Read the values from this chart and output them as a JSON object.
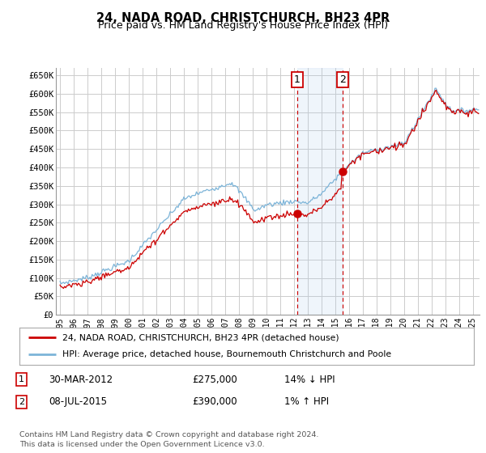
{
  "title": "24, NADA ROAD, CHRISTCHURCH, BH23 4PR",
  "subtitle": "Price paid vs. HM Land Registry's House Price Index (HPI)",
  "ylabel_ticks": [
    "£0",
    "£50K",
    "£100K",
    "£150K",
    "£200K",
    "£250K",
    "£300K",
    "£350K",
    "£400K",
    "£450K",
    "£500K",
    "£550K",
    "£600K",
    "£650K"
  ],
  "ytick_values": [
    0,
    50000,
    100000,
    150000,
    200000,
    250000,
    300000,
    350000,
    400000,
    450000,
    500000,
    550000,
    600000,
    650000
  ],
  "ylim": [
    0,
    670000
  ],
  "xlim_start": 1994.7,
  "xlim_end": 2025.5,
  "grid_color": "#cccccc",
  "background_color": "#ffffff",
  "plot_bg_color": "#ffffff",
  "hpi_line_color": "#7cb4d8",
  "price_line_color": "#cc0000",
  "sale1_x": 2012.24,
  "sale1_y": 275000,
  "sale2_x": 2015.52,
  "sale2_y": 390000,
  "legend_entries": [
    "24, NADA ROAD, CHRISTCHURCH, BH23 4PR (detached house)",
    "HPI: Average price, detached house, Bournemouth Christchurch and Poole"
  ],
  "table_rows": [
    [
      "1",
      "30-MAR-2012",
      "£275,000",
      "14% ↓ HPI"
    ],
    [
      "2",
      "08-JUL-2015",
      "£390,000",
      "1% ↑ HPI"
    ]
  ],
  "footnote": "Contains HM Land Registry data © Crown copyright and database right 2024.\nThis data is licensed under the Open Government Licence v3.0.",
  "xtick_years": [
    1995,
    1996,
    1997,
    1998,
    1999,
    2000,
    2001,
    2002,
    2003,
    2004,
    2005,
    2006,
    2007,
    2008,
    2009,
    2010,
    2011,
    2012,
    2013,
    2014,
    2015,
    2016,
    2017,
    2018,
    2019,
    2020,
    2021,
    2022,
    2023,
    2024,
    2025
  ]
}
